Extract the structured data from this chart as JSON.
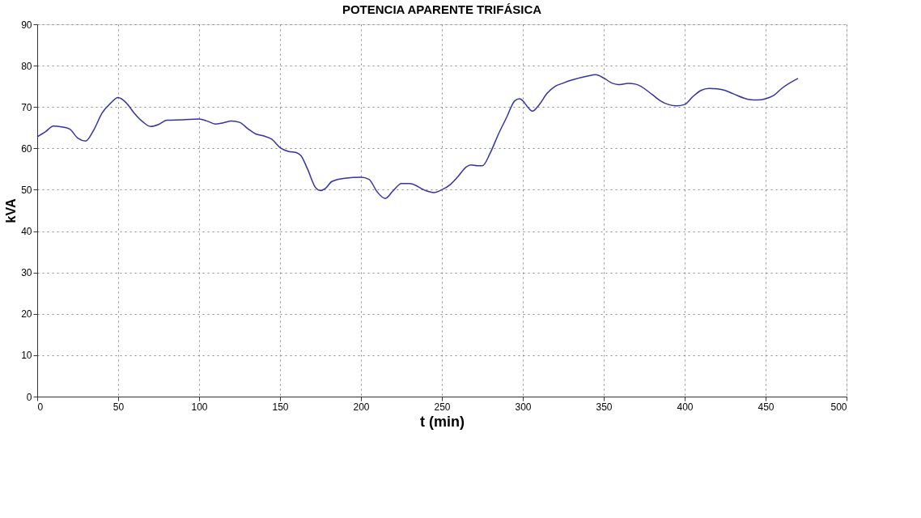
{
  "chart_data": {
    "type": "line",
    "title": "POTENCIA APARENTE TRIFÁSICA",
    "xlabel": "t (min)",
    "ylabel": "kVA",
    "x": [
      0,
      5,
      10,
      15,
      20,
      25,
      30,
      35,
      40,
      45,
      50,
      55,
      60,
      65,
      70,
      75,
      80,
      90,
      100,
      105,
      110,
      115,
      120,
      125,
      130,
      135,
      140,
      145,
      150,
      155,
      160,
      163,
      167,
      172,
      175,
      178,
      182,
      190,
      200,
      205,
      210,
      215,
      220,
      225,
      230,
      240,
      245,
      250,
      255,
      260,
      265,
      268,
      272,
      275,
      280,
      285,
      290,
      295,
      298,
      300,
      303,
      306,
      310,
      315,
      320,
      325,
      330,
      340,
      345,
      350,
      355,
      360,
      365,
      370,
      380,
      385,
      390,
      395,
      400,
      405,
      410,
      415,
      420,
      425,
      430,
      440,
      445,
      450,
      455,
      460,
      470
    ],
    "series": [
      {
        "color": "#3333aa",
        "values": [
          62.8,
          64,
          65.4,
          65.2,
          64.7,
          62.5,
          61.8,
          64.5,
          68.5,
          70.8,
          72.3,
          71,
          68.5,
          66.5,
          65.3,
          65.8,
          66.8,
          66.9,
          67.1,
          66.6,
          65.9,
          66.2,
          66.6,
          66.3,
          64.8,
          63.5,
          63,
          62.2,
          60.2,
          59.3,
          59,
          58.2,
          55,
          50.5,
          49.8,
          50.3,
          52,
          52.8,
          53,
          52.5,
          49.5,
          47.9,
          49.8,
          51.5,
          51.5,
          49.8,
          49.3,
          50,
          51.2,
          53.2,
          55.5,
          56,
          55.8,
          55.8,
          59,
          63.5,
          67.5,
          71.5,
          72,
          71.5,
          70,
          69,
          70.5,
          73.3,
          75,
          75.8,
          76.5,
          77.5,
          77.8,
          77,
          75.8,
          75.4,
          75.7,
          75.5,
          73,
          71.5,
          70.6,
          70.3,
          70.6,
          72.5,
          74,
          74.5,
          74.4,
          74,
          73.2,
          71.8,
          71.7,
          72,
          72.8,
          74.5,
          76.9
        ]
      }
    ],
    "xlim": [
      0,
      500
    ],
    "xticks": [
      0,
      50,
      100,
      150,
      200,
      250,
      300,
      350,
      400,
      450,
      500
    ],
    "ylim": [
      0,
      90
    ],
    "yticks": [
      0,
      10,
      20,
      30,
      40,
      50,
      60,
      70,
      80,
      90
    ],
    "grid": true,
    "legend": false,
    "line_style": "solid",
    "marker": "none"
  }
}
